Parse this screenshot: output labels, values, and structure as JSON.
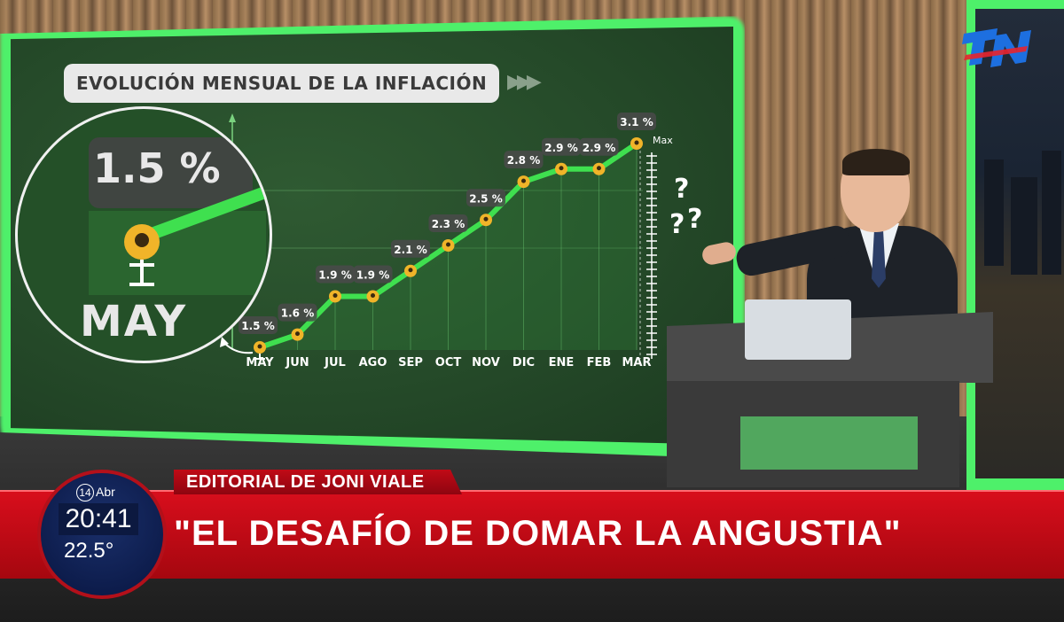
{
  "channel": {
    "logo_text": "TN",
    "logo_color": "#1d6fe0",
    "logo_accent": "#e8232e"
  },
  "chart_data": {
    "type": "line",
    "title": "EVOLUCIÓN MENSUAL DE LA INFLACIÓN",
    "categories": [
      "MAY",
      "JUN",
      "JUL",
      "AGO",
      "SEP",
      "OCT",
      "NOV",
      "DIC",
      "ENE",
      "FEB",
      "MAR"
    ],
    "values": [
      1.5,
      1.6,
      1.9,
      1.9,
      2.1,
      2.3,
      2.5,
      2.8,
      2.9,
      2.9,
      3.1
    ],
    "labels": [
      "1.5 %",
      "1.6 %",
      "1.9 %",
      "1.9 %",
      "2.1 %",
      "2.3 %",
      "2.5 %",
      "2.8 %",
      "2.9 %",
      "2.9 %",
      "3.1 %"
    ],
    "max_label": "Max",
    "line_color": "#3fe04f",
    "marker_color": "#f0b429",
    "grid": true
  },
  "zoom_callout": {
    "value": "1.5 %",
    "label": "MAY"
  },
  "presenter_annotation": {
    "marks": "?\n??"
  },
  "lower_third": {
    "segment": "EDITORIAL DE JONI VIALE",
    "headline": "\"EL DESAFÍO DE DOMAR LA ANGUSTIA\"",
    "ribbon_color": "#d80e1c"
  },
  "clock": {
    "day": "14",
    "month": "Abr",
    "time": "20:41",
    "temperature": "22.5°"
  }
}
